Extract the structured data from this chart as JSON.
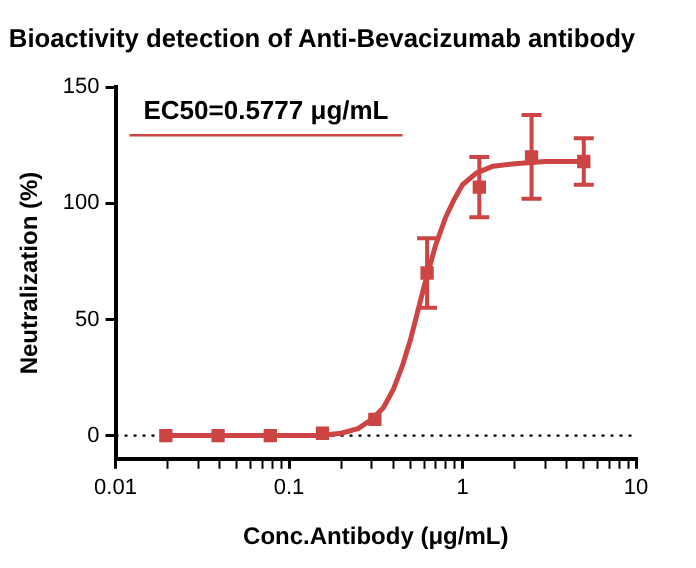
{
  "chart_data": {
    "type": "scatter",
    "title": "Bioactivity detection of Anti-Bevacizumab antibody",
    "xlabel": "Conc.Antibody (μg/mL)",
    "ylabel": "Neutralization (%)",
    "log": "x",
    "xlim": [
      0.01,
      10
    ],
    "ylim": [
      -10,
      150
    ],
    "xticks": [
      0.01,
      {
        "value": 0.02,
        "label": null
      },
      {
        "value": 0.03,
        "label": null
      },
      {
        "value": 0.04,
        "label": null
      },
      {
        "value": 0.05,
        "label": null
      },
      {
        "value": 0.06,
        "label": null
      },
      {
        "value": 0.07,
        "label": null
      },
      {
        "value": 0.08,
        "label": null
      },
      {
        "value": 0.09,
        "label": null
      },
      0.1,
      {
        "value": 0.2,
        "label": null
      },
      {
        "value": 0.3,
        "label": null
      },
      {
        "value": 0.4,
        "label": null
      },
      {
        "value": 0.5,
        "label": null
      },
      {
        "value": 0.6,
        "label": null
      },
      {
        "value": 0.7,
        "label": null
      },
      {
        "value": 0.8,
        "label": null
      },
      {
        "value": 0.9,
        "label": null
      },
      1,
      {
        "value": 2,
        "label": null
      },
      {
        "value": 3,
        "label": null
      },
      {
        "value": 4,
        "label": null
      },
      {
        "value": 5,
        "label": null
      },
      {
        "value": 6,
        "label": null
      },
      {
        "value": 7,
        "label": null
      },
      {
        "value": 8,
        "label": null
      },
      {
        "value": 9,
        "label": null
      },
      10
    ],
    "yticks": [
      0,
      50,
      100,
      150
    ],
    "grid": false,
    "legend": "top left",
    "marker": "square",
    "ref_lines": [
      {
        "axis": "y",
        "value": 0,
        "line_style": "dotted",
        "color": "#000000"
      }
    ],
    "series": [
      {
        "color": "#cc4444",
        "x": [
          0.0195,
          0.039,
          0.078,
          0.156,
          0.3125,
          0.625,
          1.25,
          2.5,
          5
        ],
        "values": [
          0,
          0,
          0,
          1,
          7,
          70,
          107,
          120,
          118
        ],
        "errors": [
          null,
          null,
          null,
          null,
          null,
          15,
          13,
          18,
          10
        ]
      },
      {
        "type": "line",
        "name": "EC50=0.5777 μg/mL",
        "color": "#cc4444",
        "x": [
          0.0195,
          0.05,
          0.1,
          0.15,
          0.2,
          0.25,
          0.3,
          0.35,
          0.4,
          0.45,
          0.5,
          0.55,
          0.6,
          0.7,
          0.8,
          0.9,
          1,
          1.2,
          1.5,
          2,
          3,
          5
        ],
        "values": [
          0,
          0,
          0,
          0,
          1,
          3,
          7,
          12,
          20,
          30,
          41,
          53,
          64,
          82,
          94,
          102,
          108,
          113,
          116,
          117,
          118,
          118
        ],
        "marker": "none",
        "line_style": "solid"
      }
    ]
  }
}
